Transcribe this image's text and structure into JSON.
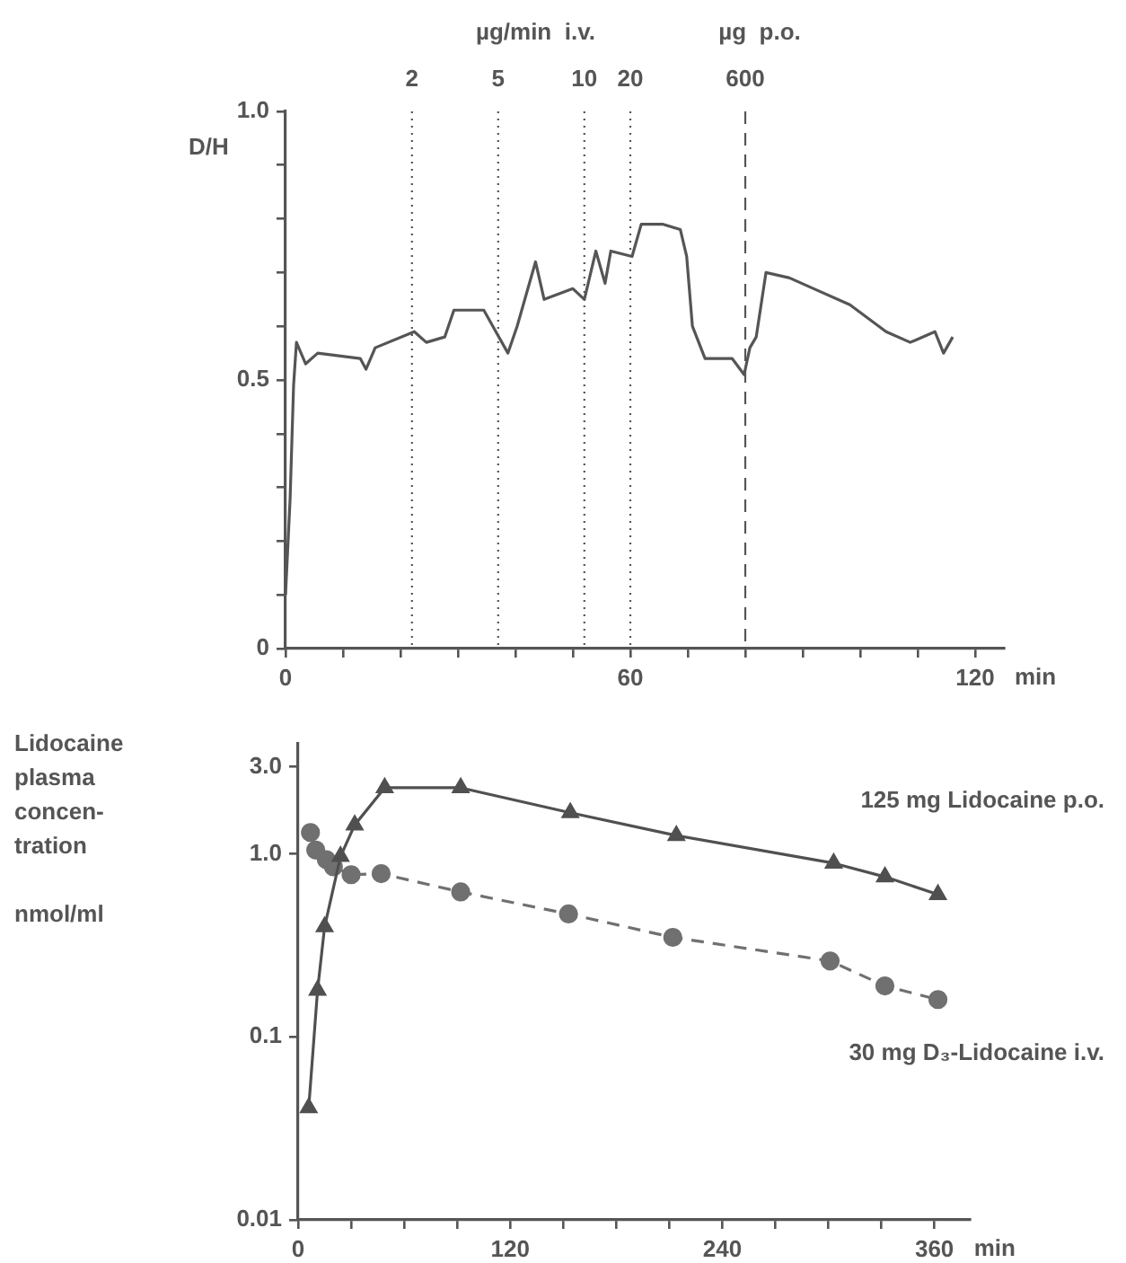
{
  "chart_data": [
    {
      "type": "line",
      "ylabel": "D/H",
      "xlabel": "min",
      "xlim": [
        0,
        125
      ],
      "xticks": [
        0,
        {
          "value": 10,
          "label": null
        },
        {
          "value": 20,
          "label": null
        },
        {
          "value": 30,
          "label": null
        },
        {
          "value": 40,
          "label": null
        },
        {
          "value": 50,
          "label": null
        },
        60,
        {
          "value": 70,
          "label": null
        },
        {
          "value": 80,
          "label": null
        },
        {
          "value": 90,
          "label": null
        },
        {
          "value": 100,
          "label": null
        },
        {
          "value": 110,
          "label": null
        },
        120
      ],
      "ylim": [
        0,
        1
      ],
      "yticks": [
        0,
        {
          "value": 0.1,
          "label": null
        },
        {
          "value": 0.2,
          "label": null
        },
        {
          "value": 0.3,
          "label": null
        },
        {
          "value": 0.4,
          "label": null
        },
        0.5,
        {
          "value": 0.6,
          "label": null
        },
        {
          "value": 0.7,
          "label": null
        },
        {
          "value": 0.8,
          "label": null
        },
        {
          "value": 0.9,
          "label": null
        },
        {
          "value": 1,
          "label": "1.0"
        }
      ],
      "grid": false,
      "legend": false,
      "series": [
        {
          "color": "#555555",
          "marker": "none",
          "line_style": "solid",
          "x": [
            0,
            0.8,
            1.4,
            1.9,
            3.5,
            5.6,
            13,
            14,
            15.6,
            22.4,
            24.5,
            27.7,
            29.3,
            34.5,
            36.6,
            38.7,
            40.3,
            43.5,
            45,
            50,
            52,
            54,
            55.6,
            56.6,
            60.3,
            61.9,
            65.6,
            68.7,
            69.8,
            70.8,
            73,
            77.7,
            79.8,
            80.8,
            81.9,
            83.6,
            87.7,
            91.9,
            98.2,
            104.5,
            108.7,
            113,
            114.5,
            116.1
          ],
          "values": [
            0.1,
            0.28,
            0.49,
            0.57,
            0.53,
            0.55,
            0.54,
            0.52,
            0.56,
            0.59,
            0.57,
            0.58,
            0.63,
            0.63,
            0.59,
            0.55,
            0.6,
            0.72,
            0.65,
            0.67,
            0.65,
            0.74,
            0.68,
            0.74,
            0.73,
            0.79,
            0.79,
            0.78,
            0.73,
            0.6,
            0.54,
            0.54,
            0.51,
            0.56,
            0.58,
            0.7,
            0.69,
            0.67,
            0.64,
            0.59,
            0.57,
            0.59,
            0.55,
            0.58
          ]
        }
      ],
      "ref_lines": [
        {
          "axis": "x",
          "value": 22,
          "line_style": "dotted"
        },
        {
          "axis": "x",
          "value": 37,
          "line_style": "dotted"
        },
        {
          "axis": "x",
          "value": 52,
          "line_style": "dotted"
        },
        {
          "axis": "x",
          "value": 60,
          "line_style": "dotted"
        },
        {
          "axis": "x",
          "value": 80,
          "line_style": "dashed"
        }
      ],
      "annotations": [
        "µg/min  i.v.",
        "µg  p.o.",
        "2",
        "5",
        "10",
        "20",
        "600"
      ]
    },
    {
      "type": "line",
      "ylabel": "Lidocaine\nplasma\nconcen-\ntration\n\nnmol/ml",
      "xlabel": "min",
      "log": "y",
      "xlim": [
        0,
        380
      ],
      "xticks": [
        0,
        {
          "value": 30,
          "label": null
        },
        {
          "value": 60,
          "label": null
        },
        {
          "value": 90,
          "label": null
        },
        120,
        {
          "value": 150,
          "label": null
        },
        {
          "value": 180,
          "label": null
        },
        {
          "value": 210,
          "label": null
        },
        240,
        {
          "value": 270,
          "label": null
        },
        {
          "value": 300,
          "label": null
        },
        {
          "value": 330,
          "label": null
        },
        360
      ],
      "ylim": [
        0.01,
        4
      ],
      "yticks": [
        {
          "value": 0.01,
          "label": "0.01"
        },
        {
          "value": 0.1,
          "label": "0.1"
        },
        {
          "value": 1,
          "label": "1.0"
        },
        {
          "value": 3,
          "label": "3.0"
        }
      ],
      "grid": false,
      "legend": false,
      "series": [
        {
          "name": "125 mg Lidocaine p.o.",
          "color": "#505050",
          "marker": "triangle",
          "line_style": "solid",
          "x": [
            6,
            11,
            15,
            24,
            32,
            49,
            92,
            154,
            214,
            303,
            332,
            362
          ],
          "values": [
            0.041,
            0.18,
            0.4,
            0.97,
            1.44,
            2.3,
            2.3,
            1.68,
            1.26,
            0.89,
            0.75,
            0.6
          ]
        },
        {
          "name": "30 mg D₃-Lidocaine i.v.",
          "color": "#707070",
          "marker": "circle",
          "line_style": "dashed",
          "x": [
            7,
            10,
            16,
            20,
            30,
            47,
            92,
            153,
            212,
            301,
            332,
            362
          ],
          "values": [
            1.31,
            1.05,
            0.93,
            0.85,
            0.77,
            0.78,
            0.62,
            0.47,
            0.35,
            0.26,
            0.19,
            0.16
          ]
        }
      ]
    }
  ]
}
